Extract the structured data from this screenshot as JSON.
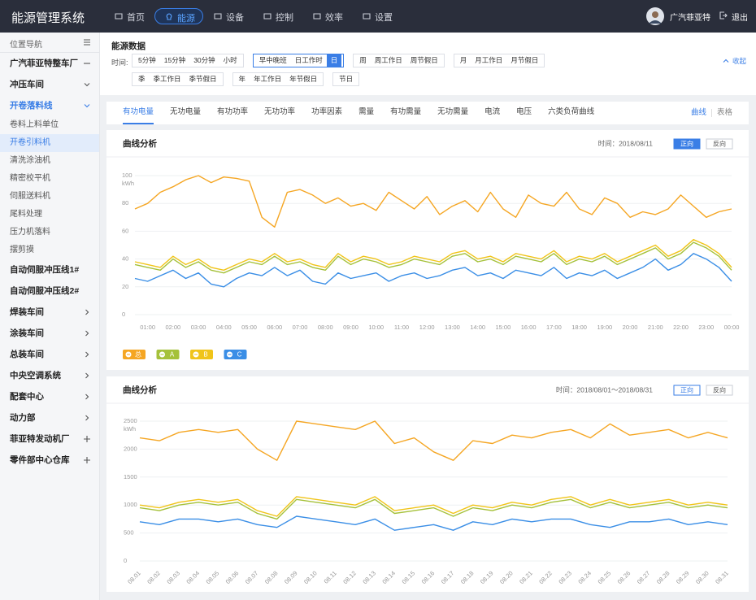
{
  "header": {
    "title": "能源管理系统",
    "nav": [
      "首页",
      "能源",
      "设备",
      "控制",
      "效率",
      "设置"
    ],
    "active_nav": 1,
    "user": "广汽菲亚特",
    "logout": "退出"
  },
  "sidebar": {
    "title": "位置导航",
    "selected": 4,
    "current_branch": 2,
    "items": [
      {
        "label": "广汽菲亚特整车厂",
        "level": 0,
        "toggle": "minus"
      },
      {
        "label": "冲压车间",
        "level": 0,
        "toggle": "down"
      },
      {
        "label": "开卷落料线",
        "level": 0,
        "toggle": "down"
      },
      {
        "label": "卷料上料单位",
        "level": 1,
        "toggle": null
      },
      {
        "label": "开卷引料机",
        "level": 1,
        "toggle": null
      },
      {
        "label": "清洗涂油机",
        "level": 1,
        "toggle": null
      },
      {
        "label": "精密校平机",
        "level": 1,
        "toggle": null
      },
      {
        "label": "伺服送料机",
        "level": 1,
        "toggle": null
      },
      {
        "label": "尾料处理",
        "level": 1,
        "toggle": null
      },
      {
        "label": "压力机落料",
        "level": 1,
        "toggle": null
      },
      {
        "label": "摆剪摸",
        "level": 1,
        "toggle": null
      },
      {
        "label": "自动伺服冲压线1#",
        "level": 0,
        "toggle": null
      },
      {
        "label": "自动伺服冲压线2#",
        "level": 0,
        "toggle": null
      },
      {
        "label": "焊装车间",
        "level": 0,
        "toggle": "right"
      },
      {
        "label": "涂装车间",
        "level": 0,
        "toggle": "right"
      },
      {
        "label": "总装车间",
        "level": 0,
        "toggle": "right"
      },
      {
        "label": "中央空调系统",
        "level": 0,
        "toggle": "right"
      },
      {
        "label": "配套中心",
        "level": 0,
        "toggle": "right"
      },
      {
        "label": "动力部",
        "level": 0,
        "toggle": "right"
      },
      {
        "label": "菲亚特发动机厂",
        "level": 0,
        "toggle": "plus"
      },
      {
        "label": "零件部中心仓库",
        "level": 0,
        "toggle": "plus"
      }
    ]
  },
  "filter": {
    "title": "能源数据",
    "label": "时间:",
    "groups": [
      [
        "5分钟",
        "15分钟",
        "30分钟",
        "小时"
      ],
      [
        "早中晚班",
        "日工作时",
        "日"
      ],
      [
        "周",
        "周工作日",
        "周节假日"
      ],
      [
        "月",
        "月工作日",
        "月节假日"
      ],
      [
        "季",
        "季工作日",
        "季节假日"
      ],
      [
        "年",
        "年工作日",
        "年节假日"
      ],
      [
        "节日"
      ]
    ],
    "selected": [
      1,
      2
    ],
    "collapse": "收起"
  },
  "tabs": {
    "items": [
      "有功电量",
      "无功电量",
      "有功功率",
      "无功功率",
      "功率因素",
      "需量",
      "有功需量",
      "无功需量",
      "电流",
      "电压",
      "六类负荷曲线"
    ],
    "active": 0,
    "views": [
      "曲线",
      "表格"
    ],
    "active_view": 0
  },
  "chart_data": [
    {
      "type": "line",
      "title": "曲线分析",
      "subtitle": "时间：2018/08/11",
      "buttons": [
        "正向",
        "反向"
      ],
      "active_button": 0,
      "button_style": "filled",
      "y_label": "kWh",
      "grid": true,
      "legend": "bottom-left",
      "ylim": [
        0,
        100
      ],
      "yticks": [
        0,
        20,
        40,
        60,
        80,
        100
      ],
      "categories": [
        null,
        "01:00",
        null,
        "02:00",
        null,
        "03:00",
        null,
        "04:00",
        null,
        "05:00",
        null,
        "06:00",
        null,
        "07:00",
        null,
        "08:00",
        null,
        "09:00",
        null,
        "10:00",
        null,
        "11:00",
        null,
        "12:00",
        null,
        "13:00",
        null,
        "14:00",
        null,
        "15:00",
        null,
        "16:00",
        null,
        "17:00",
        null,
        "18:00",
        null,
        "19:00",
        null,
        "20:00",
        null,
        "21:00",
        null,
        "22:00",
        null,
        "23:00",
        null,
        "00:00"
      ],
      "series": [
        {
          "name": "总",
          "color": "#f5a623",
          "values": [
            76,
            80,
            88,
            92,
            97,
            100,
            95,
            99,
            98,
            96,
            70,
            63,
            88,
            90,
            86,
            80,
            84,
            78,
            80,
            75,
            88,
            82,
            76,
            85,
            72,
            78,
            82,
            74,
            88,
            76,
            70,
            86,
            80,
            78,
            88,
            76,
            72,
            84,
            80,
            70,
            74,
            72,
            76,
            86,
            78,
            70,
            74,
            76
          ]
        },
        {
          "name": "A",
          "color": "#a5c13a",
          "values": [
            36,
            34,
            32,
            40,
            34,
            38,
            32,
            30,
            34,
            38,
            36,
            42,
            36,
            38,
            34,
            32,
            42,
            36,
            40,
            38,
            34,
            36,
            40,
            38,
            36,
            42,
            44,
            38,
            40,
            36,
            42,
            40,
            38,
            44,
            36,
            40,
            38,
            42,
            36,
            40,
            44,
            48,
            40,
            44,
            52,
            48,
            42,
            32
          ]
        },
        {
          "name": "B",
          "color": "#f0c419",
          "values": [
            38,
            36,
            34,
            42,
            36,
            40,
            34,
            32,
            36,
            40,
            38,
            44,
            38,
            40,
            36,
            34,
            44,
            38,
            42,
            40,
            36,
            38,
            42,
            40,
            38,
            44,
            46,
            40,
            42,
            38,
            44,
            42,
            40,
            46,
            38,
            42,
            40,
            44,
            38,
            42,
            46,
            50,
            42,
            46,
            54,
            50,
            44,
            34
          ]
        },
        {
          "name": "C",
          "color": "#3a8ee6",
          "values": [
            26,
            24,
            28,
            32,
            26,
            30,
            22,
            20,
            26,
            30,
            28,
            34,
            28,
            32,
            24,
            22,
            30,
            26,
            28,
            30,
            24,
            28,
            30,
            26,
            28,
            32,
            34,
            28,
            30,
            26,
            32,
            30,
            28,
            34,
            26,
            30,
            28,
            32,
            26,
            30,
            34,
            40,
            32,
            36,
            44,
            40,
            34,
            24
          ]
        }
      ]
    },
    {
      "type": "line",
      "title": "曲线分析",
      "subtitle": "时间：2018/08/01～2018/08/31",
      "buttons": [
        "正向",
        "反向"
      ],
      "active_button": 0,
      "button_style": "outline",
      "y_label": "kWh",
      "grid": true,
      "ylim": [
        0,
        2500
      ],
      "yticks": [
        0,
        500,
        1000,
        1500,
        2000,
        2500
      ],
      "categories": [
        "08.01",
        "08.02",
        "08.03",
        "08.04",
        "08.05",
        "08.06",
        "08.07",
        "08.08",
        "08.09",
        "08.10",
        "08.11",
        "08.12",
        "08.13",
        "08.14",
        "08.15",
        "08.16",
        "08.17",
        "08.18",
        "08.19",
        "08.20",
        "08.21",
        "08.22",
        "08.23",
        "08.24",
        "08.25",
        "08.26",
        "08.27",
        "08.28",
        "08.29",
        "08.30",
        "08.31"
      ],
      "series": [
        {
          "color": "#f5a623",
          "values": [
            2200,
            2150,
            2300,
            2350,
            2300,
            2350,
            2000,
            1800,
            2500,
            2450,
            2400,
            2350,
            2500,
            2100,
            2200,
            1950,
            1800,
            2150,
            2100,
            2250,
            2200,
            2300,
            2350,
            2200,
            2450,
            2250,
            2300,
            2350,
            2200,
            2300,
            2200
          ]
        },
        {
          "color": "#a5c13a",
          "values": [
            950,
            900,
            1000,
            1050,
            1000,
            1050,
            850,
            750,
            1100,
            1050,
            1000,
            950,
            1100,
            850,
            900,
            950,
            800,
            950,
            900,
            1000,
            950,
            1050,
            1100,
            950,
            1050,
            950,
            1000,
            1050,
            950,
            1000,
            950
          ]
        },
        {
          "color": "#f0c419",
          "values": [
            1000,
            950,
            1050,
            1100,
            1050,
            1100,
            900,
            800,
            1150,
            1100,
            1050,
            1000,
            1150,
            900,
            950,
            1000,
            850,
            1000,
            950,
            1050,
            1000,
            1100,
            1150,
            1000,
            1100,
            1000,
            1050,
            1100,
            1000,
            1050,
            1000
          ]
        },
        {
          "color": "#3a8ee6",
          "values": [
            700,
            650,
            750,
            750,
            700,
            750,
            650,
            600,
            800,
            750,
            700,
            650,
            750,
            550,
            600,
            650,
            550,
            700,
            650,
            750,
            700,
            750,
            750,
            650,
            600,
            700,
            700,
            750,
            650,
            700,
            650
          ]
        }
      ]
    }
  ]
}
